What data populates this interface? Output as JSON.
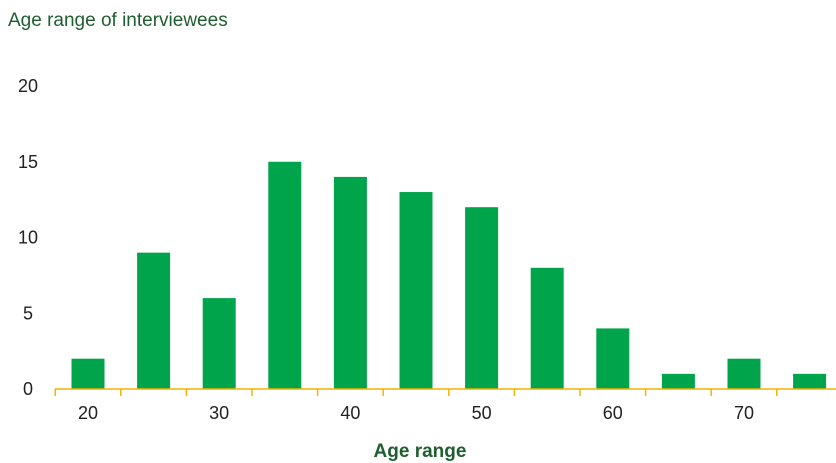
{
  "chart_data": {
    "type": "bar",
    "title": "Age range of interviewees",
    "xlabel": "Age range",
    "ylabel": "",
    "ylim": [
      0,
      20
    ],
    "yticks": [
      "0",
      "5",
      "10",
      "15",
      "20"
    ],
    "xticks": [
      "20",
      "30",
      "40",
      "50",
      "60",
      "70"
    ],
    "x": [
      20,
      25,
      30,
      35,
      40,
      45,
      50,
      55,
      60,
      65,
      70,
      75
    ],
    "values": [
      2,
      9,
      6,
      15,
      14,
      13,
      12,
      8,
      4,
      1,
      2,
      1
    ],
    "grid": false,
    "colors": {
      "bar": "#00a44a",
      "axis": "#f0b400",
      "title": "#1f5e2e",
      "text": "#222222"
    }
  }
}
